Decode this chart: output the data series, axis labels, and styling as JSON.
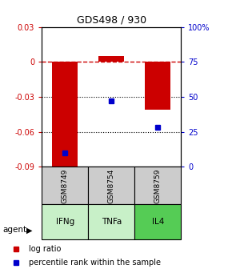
{
  "title": "GDS498 / 930",
  "samples": [
    "GSM8749",
    "GSM8754",
    "GSM8759"
  ],
  "agents": [
    "IFNg",
    "TNFa",
    "IL4"
  ],
  "log_ratios": [
    -0.091,
    0.005,
    -0.041
  ],
  "percentile_ranks": [
    10,
    47,
    28
  ],
  "bar_color": "#cc0000",
  "dot_color": "#0000cc",
  "ylim_left": [
    -0.09,
    0.03
  ],
  "ylim_right": [
    0,
    100
  ],
  "yticks_left": [
    0.03,
    0.0,
    -0.03,
    -0.06,
    -0.09
  ],
  "yticks_right": [
    100,
    75,
    50,
    25,
    0
  ],
  "ytick_labels_left": [
    "0.03",
    "0",
    "-0.03",
    "-0.06",
    "-0.09"
  ],
  "ytick_labels_right": [
    "100%",
    "75",
    "50",
    "25",
    "0"
  ],
  "hlines_dotted": [
    -0.03,
    -0.06
  ],
  "zero_line_color": "#cc0000",
  "zero_line_style": "--",
  "grid_color": "#000000",
  "agent_colors": [
    "#b3ffb3",
    "#ccffcc",
    "#66ff66"
  ],
  "agent_bg": [
    "#c8f0c8",
    "#c8f0c8",
    "#55dd55"
  ],
  "gsm_bg": "#cccccc",
  "legend_red_label": "log ratio",
  "legend_blue_label": "percentile rank within the sample"
}
